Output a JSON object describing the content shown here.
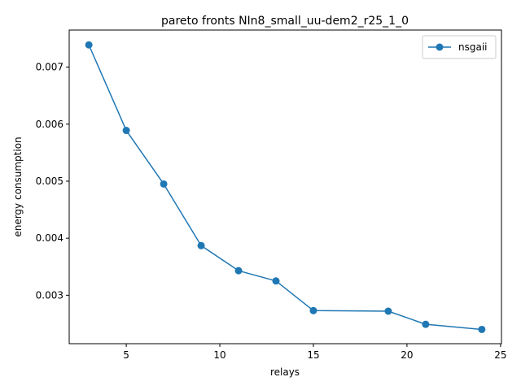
{
  "chart_data": {
    "type": "line",
    "title": "pareto fronts NIn8_small_uu-dem2_r25_1_0",
    "xlabel": "relays",
    "ylabel": "energy consumption",
    "xlim": [
      1.95,
      25.05
    ],
    "ylim": [
      0.00215,
      0.00765
    ],
    "xticks": [
      5,
      10,
      15,
      20,
      25
    ],
    "xtick_labels": [
      "5",
      "10",
      "15",
      "20",
      "25"
    ],
    "yticks": [
      0.003,
      0.004,
      0.005,
      0.006,
      0.007
    ],
    "ytick_labels": [
      "0.003",
      "0.004",
      "0.005",
      "0.006",
      "0.007"
    ],
    "grid": false,
    "legend_position": "top-right",
    "series": [
      {
        "name": "nsgaii",
        "color": "#1f77b4",
        "marker": "circle",
        "x": [
          3,
          5,
          7,
          9,
          11,
          13,
          15,
          19,
          21,
          24
        ],
        "y": [
          0.00739,
          0.00589,
          0.00495,
          0.00387,
          0.00343,
          0.00325,
          0.00273,
          0.00272,
          0.00249,
          0.0024
        ]
      }
    ]
  }
}
